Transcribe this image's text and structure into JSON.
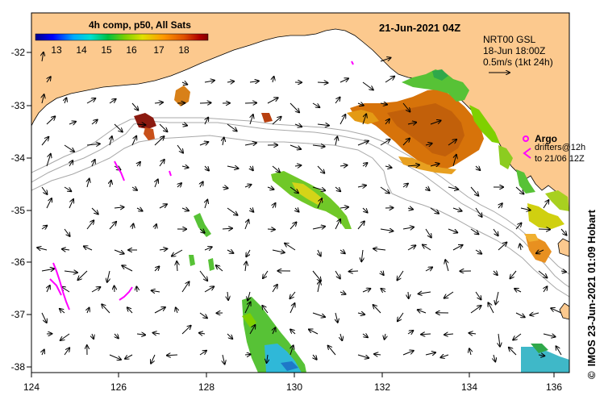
{
  "title": "21-Jun-2021 04Z",
  "colorbar": {
    "label": "4h comp, p50, All Sats",
    "ticks": [
      "13",
      "14",
      "15",
      "16",
      "17",
      "18"
    ],
    "colors": [
      "#00008b",
      "#0000ff",
      "#00aaff",
      "#00e0d0",
      "#00c040",
      "#7fd000",
      "#e0e000",
      "#ff9900",
      "#e05000",
      "#b00000",
      "#800000"
    ]
  },
  "current_info": {
    "line1": "NRT00 GSL",
    "line2": "18-Jun 18:00Z",
    "line3": "0.5m/s (1kt 24h)"
  },
  "argo": {
    "label": "Argo",
    "line1": "drifters@12h",
    "line2": "to 21/06 12Z"
  },
  "credit": "IMOS 23-Jun-2021 01:09 Hobart",
  "copyright_symbol": "©",
  "axes": {
    "x_ticks": [
      "124",
      "126",
      "128",
      "130",
      "132",
      "134",
      "136"
    ],
    "y_ticks": [
      "-32",
      "-33",
      "-34",
      "-35",
      "-36",
      "-37",
      "-38"
    ]
  },
  "colors": {
    "land": "#fcc98e",
    "sea": "#ffffff",
    "argo": "#ff00ff",
    "bathy": "#a0a0a0"
  }
}
